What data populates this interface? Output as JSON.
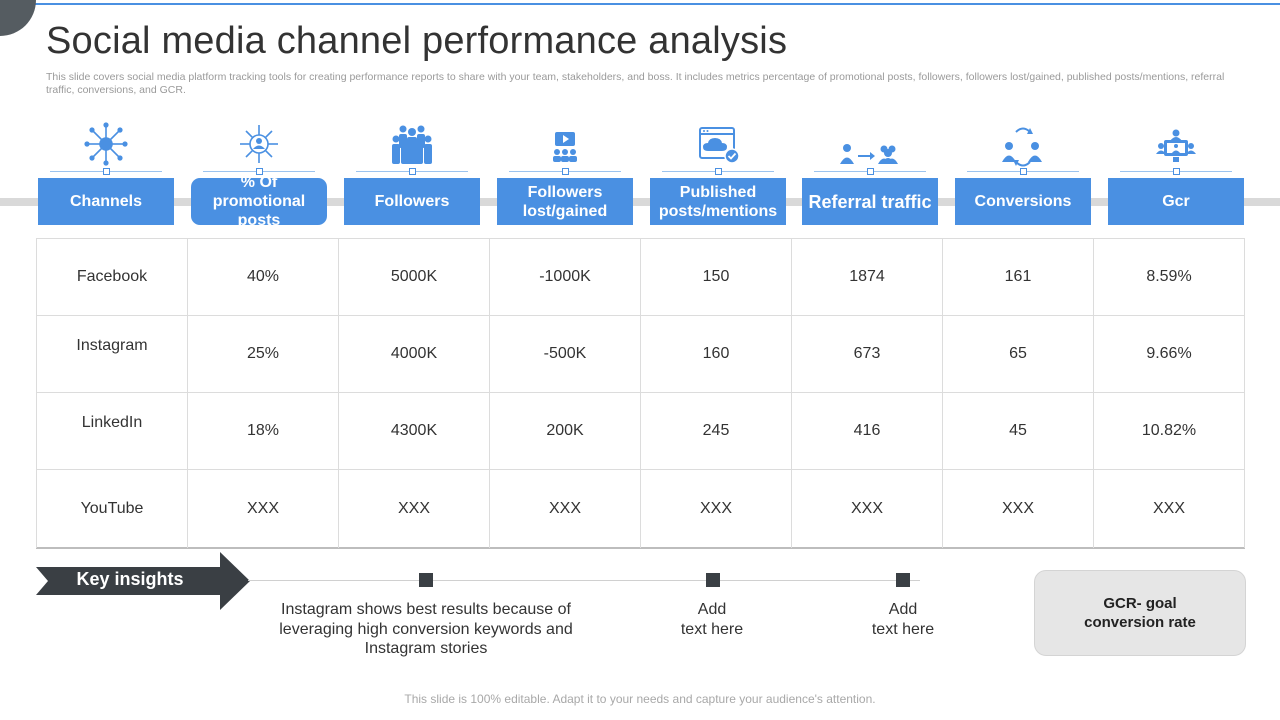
{
  "slide": {
    "title": "Social media channel performance analysis",
    "subtitle": "This slide covers social media platform tracking tools for creating performance reports to share with your team, stakeholders, and boss. It includes metrics percentage of promotional posts, followers, followers lost/gained, published posts/mentions, referral traffic, conversions, and GCR.",
    "footer": "This slide is 100% editable. Adapt it to your needs and capture your audience's attention."
  },
  "colors": {
    "accent": "#4a90e2",
    "dark": "#3a3f44",
    "grey": "#d9d9d9"
  },
  "columns": [
    {
      "label": "Channels",
      "icon": "network-icon"
    },
    {
      "label": "% Of promotional posts",
      "icon": "user-hub-icon"
    },
    {
      "label": "Followers",
      "icon": "people-group-icon"
    },
    {
      "label": "Followers lost/gained",
      "icon": "monitor-users-icon"
    },
    {
      "label": "Published posts/mentions",
      "icon": "cloud-browser-icon"
    },
    {
      "label": "Referral traffic",
      "icon": "referral-arrow-icon"
    },
    {
      "label": "Conversions",
      "icon": "user-exchange-icon"
    },
    {
      "label": "Gcr",
      "icon": "video-conference-icon"
    }
  ],
  "rows": [
    {
      "channel": "Facebook",
      "values": [
        "40%",
        "5000K",
        "-1000K",
        "150",
        "1874",
        "161",
        "8.59%"
      ]
    },
    {
      "channel": "Instagram",
      "values": [
        "25%",
        "4000K",
        "-500K",
        "160",
        "673",
        "65",
        "9.66%"
      ]
    },
    {
      "channel": "LinkedIn",
      "values": [
        "18%",
        "4300K",
        "200K",
        "245",
        "416",
        "45",
        "10.82%"
      ]
    },
    {
      "channel": "YouTube",
      "values": [
        "XXX",
        "XXX",
        "XXX",
        "XXX",
        "XXX",
        "XXX",
        "XXX"
      ]
    }
  ],
  "insights": {
    "label": "Key insights",
    "notes": [
      {
        "line1": "Instagram shows best results because of",
        "line2": "leveraging high conversion keywords and",
        "line3": "Instagram stories"
      },
      {
        "line1": "Add",
        "line2": "text here"
      },
      {
        "line1": "Add",
        "line2": "text here"
      }
    ],
    "gcr_box": {
      "line1": "GCR- goal",
      "line2": "conversion rate"
    }
  }
}
